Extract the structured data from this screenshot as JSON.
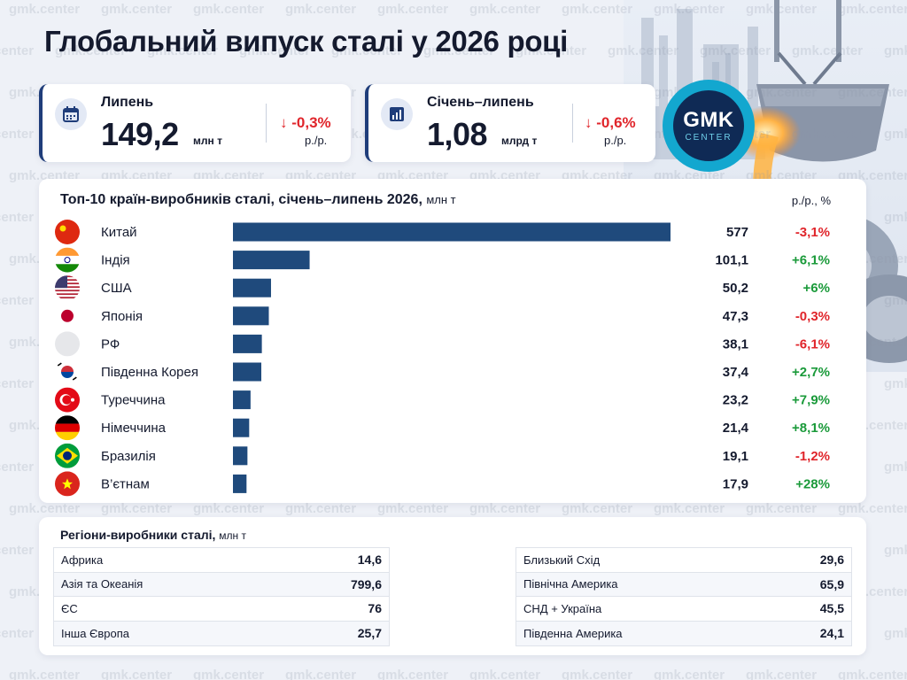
{
  "title": "Глобальний випуск сталі у 2026 році",
  "watermark": "gmk.center",
  "kpis": [
    {
      "label": "Липень",
      "value": "149,2",
      "unit": "млн т",
      "change": "-0,3%",
      "change_unit": "р./р.",
      "icon": "calendar-icon"
    },
    {
      "label": "Січень–липень",
      "value": "1,08",
      "unit": "млрд т",
      "change": "-0,6%",
      "change_unit": "р./р.",
      "icon": "bar-chart-icon"
    }
  ],
  "logo": {
    "main": "GMK",
    "sub": "CENTER"
  },
  "colors": {
    "bar": "#1f4a7c",
    "positive": "#1a9a3a",
    "negative": "#e0252b",
    "accent": "#1f3d7a"
  },
  "chart_data": {
    "type": "bar",
    "orientation": "horizontal",
    "title": "Топ-10 країн-виробників сталі, січень–липень 2026,",
    "title_unit": "млн т",
    "change_header": "р./р., %",
    "categories": [
      "Китай",
      "Індія",
      "США",
      "Японія",
      "РФ",
      "Південна Корея",
      "Туреччина",
      "Німеччина",
      "Бразилія",
      "В’єтнам"
    ],
    "values": [
      577,
      101.1,
      50.2,
      47.3,
      38.1,
      37.4,
      23.2,
      21.4,
      19.1,
      17.9
    ],
    "value_labels": [
      "577",
      "101,1",
      "50,2",
      "47,3",
      "38,1",
      "37,4",
      "23,2",
      "21,4",
      "19,1",
      "17,9"
    ],
    "changes": [
      "-3,1%",
      "+6,1%",
      "+6%",
      "-0,3%",
      "-6,1%",
      "+2,7%",
      "+7,9%",
      "+8,1%",
      "-1,2%",
      "+28%"
    ],
    "flags": [
      "china-flag-icon",
      "india-flag-icon",
      "usa-flag-icon",
      "japan-flag-icon",
      "russia-flag-icon",
      "south-korea-flag-icon",
      "turkey-flag-icon",
      "germany-flag-icon",
      "brazil-flag-icon",
      "vietnam-flag-icon"
    ],
    "xlim": [
      0,
      577
    ]
  },
  "regions": {
    "title": "Регіони-виробники сталі,",
    "unit": "млн т",
    "left": [
      {
        "name": "Африка",
        "value": "14,6"
      },
      {
        "name": "Азія та Океанія",
        "value": "799,6"
      },
      {
        "name": "ЄС",
        "value": "76"
      },
      {
        "name": "Інша Європа",
        "value": "25,7"
      }
    ],
    "right": [
      {
        "name": "Близький Схід",
        "value": "29,6"
      },
      {
        "name": "Північна Америка",
        "value": "65,9"
      },
      {
        "name": "СНД + Україна",
        "value": "45,5"
      },
      {
        "name": "Південна Америка",
        "value": "24,1"
      }
    ]
  }
}
